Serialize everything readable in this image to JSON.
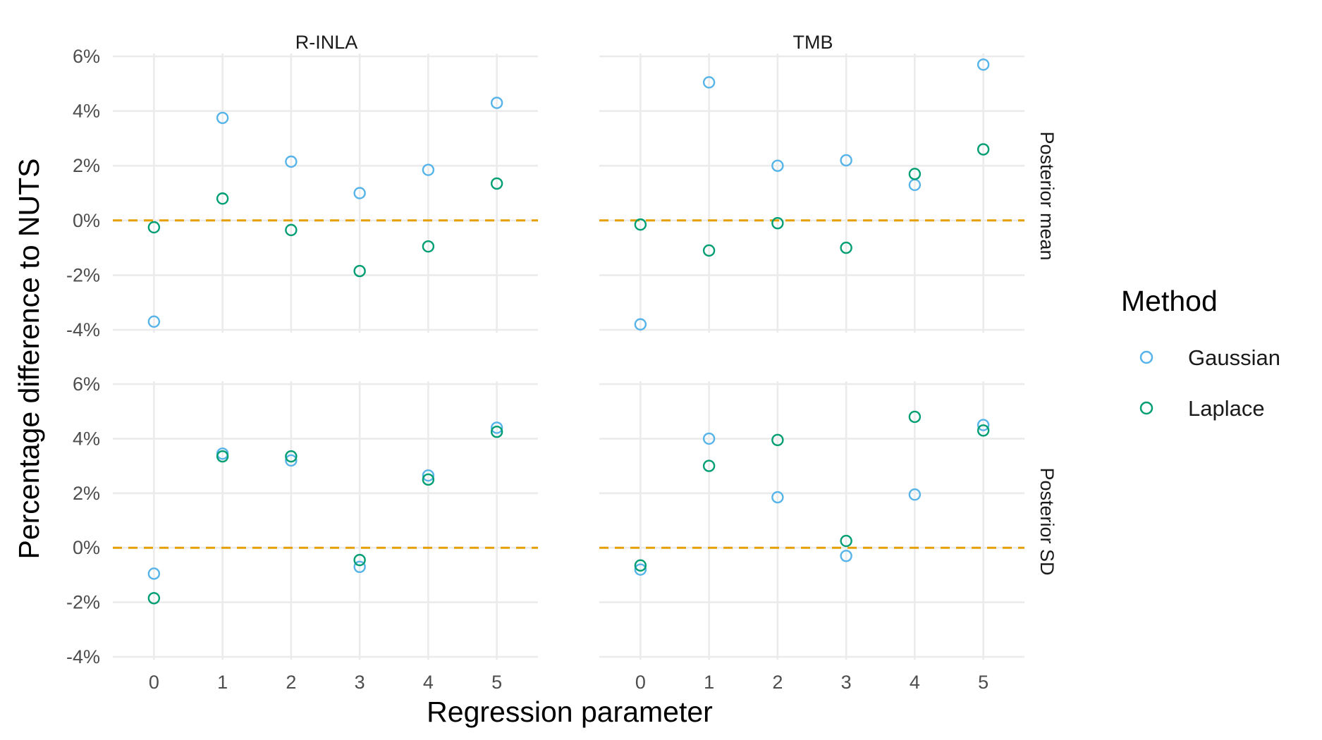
{
  "chart_data": {
    "type": "scatter",
    "facet_columns": [
      "R-INLA",
      "TMB"
    ],
    "facet_rows": [
      "Posterior mean",
      "Posterior SD"
    ],
    "x": [
      0,
      1,
      2,
      3,
      4,
      5
    ],
    "x_ticks": [
      "0",
      "1",
      "2",
      "3",
      "4",
      "5"
    ],
    "xlabel": "Regression parameter",
    "ylabel": "Percentage difference to NUTS",
    "y_ticks": [
      "-4%",
      "-2%",
      "0%",
      "2%",
      "4%",
      "6%"
    ],
    "ylim": [
      -4,
      6
    ],
    "reference_line": {
      "y": 0,
      "style": "dashed",
      "color": "#E69F00"
    },
    "grid": true,
    "legend": {
      "title": "Method",
      "position": "right",
      "entries": [
        {
          "name": "Gaussian",
          "color": "#56B4E9"
        },
        {
          "name": "Laplace",
          "color": "#009E73"
        }
      ]
    },
    "panels": [
      {
        "column": "R-INLA",
        "row": "Posterior mean",
        "series": [
          {
            "name": "Gaussian",
            "values": [
              -3.7,
              3.75,
              2.15,
              1.0,
              1.85,
              4.3
            ]
          },
          {
            "name": "Laplace",
            "values": [
              -0.25,
              0.8,
              -0.35,
              -1.85,
              -0.95,
              1.35
            ]
          }
        ]
      },
      {
        "column": "TMB",
        "row": "Posterior mean",
        "series": [
          {
            "name": "Gaussian",
            "values": [
              -3.8,
              5.05,
              2.0,
              2.2,
              1.3,
              5.7
            ]
          },
          {
            "name": "Laplace",
            "values": [
              -0.15,
              -1.1,
              -0.1,
              -1.0,
              1.7,
              2.6
            ]
          }
        ]
      },
      {
        "column": "R-INLA",
        "row": "Posterior SD",
        "series": [
          {
            "name": "Gaussian",
            "values": [
              -0.95,
              3.45,
              3.2,
              -0.7,
              2.65,
              4.4
            ]
          },
          {
            "name": "Laplace",
            "values": [
              -1.85,
              3.35,
              3.35,
              -0.45,
              2.5,
              4.25
            ]
          }
        ]
      },
      {
        "column": "TMB",
        "row": "Posterior SD",
        "series": [
          {
            "name": "Gaussian",
            "values": [
              -0.8,
              4.0,
              1.85,
              -0.3,
              1.95,
              4.5
            ]
          },
          {
            "name": "Laplace",
            "values": [
              -0.65,
              3.0,
              3.95,
              0.25,
              4.8,
              4.3
            ]
          }
        ]
      }
    ]
  }
}
